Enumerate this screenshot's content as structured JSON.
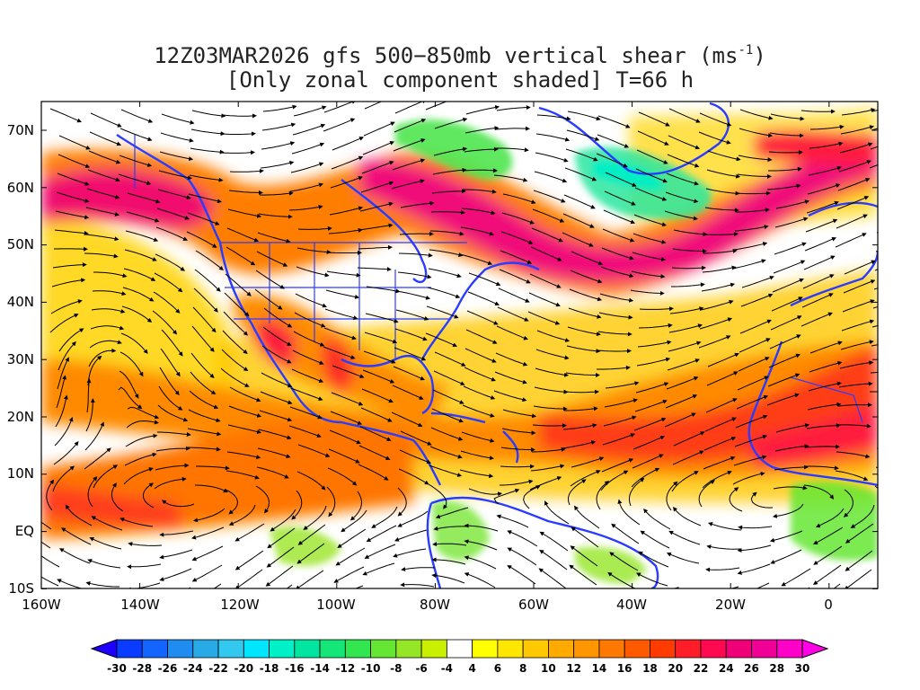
{
  "title": {
    "line1": "12Z03MAR2026 gfs 500−850mb vertical shear (ms",
    "line1_sup": "-1",
    "line1_end": ")",
    "line2": "[Only zonal component shaded] T=66 h"
  },
  "lat_labels": [
    "70N",
    "60N",
    "50N",
    "40N",
    "30N",
    "20N",
    "10N",
    "EQ",
    "10S"
  ],
  "lon_labels": [
    "160W",
    "140W",
    "120W",
    "100W",
    "80W",
    "60W",
    "40W",
    "20W",
    "0"
  ],
  "map_extent": {
    "lon_min": -160,
    "lon_max": 10,
    "lat_min": -10,
    "lat_max": 75
  },
  "colorbar": {
    "labels": [
      "-30",
      "-28",
      "-26",
      "-24",
      "-22",
      "-20",
      "-18",
      "-16",
      "-14",
      "-12",
      "-10",
      "-8",
      "-6",
      "-4",
      "4",
      "6",
      "8",
      "10",
      "12",
      "14",
      "16",
      "18",
      "20",
      "22",
      "24",
      "26",
      "28",
      "30"
    ],
    "colors": [
      "#1d00ff",
      "#0a3cff",
      "#1464ff",
      "#1e8cf0",
      "#28aae6",
      "#32c8f0",
      "#00e6ff",
      "#00f0c8",
      "#00e6a0",
      "#14e678",
      "#32e650",
      "#64e632",
      "#96e628",
      "#c8f000",
      "#ffffff",
      "#ffff00",
      "#ffe600",
      "#ffc800",
      "#ffaa00",
      "#ff9600",
      "#ff7800",
      "#ff5a00",
      "#ff3c00",
      "#ff1e28",
      "#ff0a50",
      "#f00078",
      "#f00096",
      "#ff00c8",
      "#ff00e6"
    ]
  },
  "colors": {
    "coastline": "#2a3cff",
    "streamlines": "#000000",
    "jet_core": "#f0147a",
    "shear_orange": "#ff7a00"
  }
}
